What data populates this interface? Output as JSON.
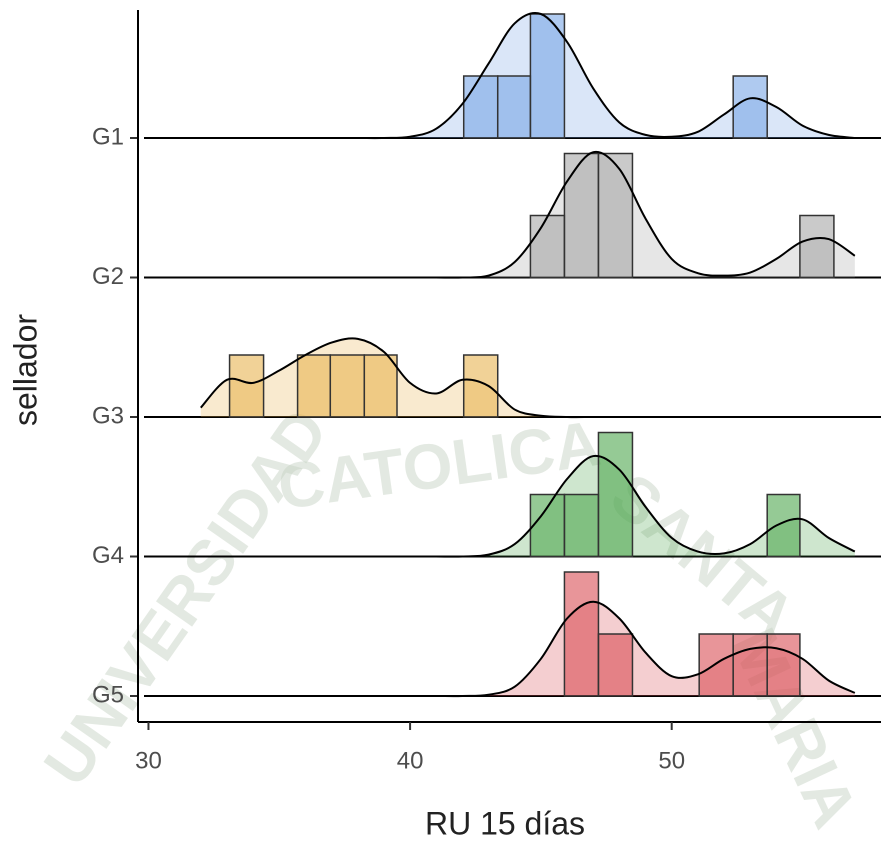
{
  "chart_data": {
    "type": "ridgeline-histogram",
    "x_label": "RU 15 días",
    "y_label": "sellador",
    "xlim": [
      29.6,
      58
    ],
    "xticks": [
      30,
      40,
      50
    ],
    "bins": [
      33.1,
      34.4,
      35.7,
      36.95,
      38.25,
      39.5,
      40.8,
      42.05,
      43.35,
      44.6,
      45.9,
      47.2,
      48.5,
      49.75,
      51.05,
      52.35,
      53.65,
      54.9,
      56.2
    ],
    "density_x": [
      32,
      33,
      34,
      35,
      36,
      37,
      38,
      39,
      40,
      41,
      42,
      43,
      44,
      45,
      46,
      47,
      48,
      49,
      50,
      51,
      52,
      53,
      54,
      55,
      56,
      57
    ],
    "series": [
      {
        "name": "G1",
        "color": "#7aa6e6",
        "counts": [
          0,
          0,
          0,
          0,
          0,
          0,
          0,
          1,
          1,
          2,
          0,
          0,
          0,
          0,
          0,
          1,
          0,
          0
        ],
        "density": [
          0,
          0,
          0,
          0,
          0,
          0,
          0,
          0,
          0.02,
          0.15,
          0.55,
          1.2,
          1.85,
          2.0,
          1.55,
          0.8,
          0.25,
          0.05,
          0.02,
          0.1,
          0.38,
          0.64,
          0.5,
          0.2,
          0.05,
          0
        ]
      },
      {
        "name": "G2",
        "color": "#a6a6a6",
        "counts": [
          0,
          0,
          0,
          0,
          0,
          0,
          0,
          0,
          0,
          1,
          2,
          2,
          0,
          0,
          0,
          0,
          0,
          1
        ],
        "density": [
          0,
          0,
          0,
          0,
          0,
          0,
          0,
          0,
          0,
          0,
          0,
          0.03,
          0.25,
          0.8,
          1.55,
          2.02,
          1.75,
          0.95,
          0.3,
          0.07,
          0.03,
          0.08,
          0.3,
          0.58,
          0.62,
          0.35
        ]
      },
      {
        "name": "G3",
        "color": "#e8b452",
        "counts": [
          1,
          0,
          1,
          1,
          1,
          0,
          0,
          1,
          0,
          0,
          0,
          0,
          0,
          0,
          0,
          0,
          0,
          0
        ],
        "density": [
          0.15,
          0.6,
          0.55,
          0.75,
          1.0,
          1.2,
          1.26,
          1.05,
          0.55,
          0.38,
          0.6,
          0.5,
          0.12,
          0.02,
          0,
          0,
          0,
          0,
          0,
          0,
          0,
          0,
          0,
          0,
          0,
          0
        ]
      },
      {
        "name": "G4",
        "color": "#4ea64e",
        "counts": [
          0,
          0,
          0,
          0,
          0,
          0,
          0,
          0,
          0,
          1,
          1,
          2,
          0,
          0,
          0,
          0,
          1,
          0
        ],
        "density": [
          0,
          0,
          0,
          0,
          0,
          0,
          0,
          0,
          0,
          0,
          0,
          0.03,
          0.2,
          0.65,
          1.25,
          1.62,
          1.4,
          0.8,
          0.3,
          0.08,
          0.05,
          0.2,
          0.5,
          0.6,
          0.3,
          0.08
        ]
      },
      {
        "name": "G5",
        "color": "#d94f55",
        "counts": [
          0,
          0,
          0,
          0,
          0,
          0,
          0,
          0,
          0,
          0,
          2,
          1,
          0,
          0,
          1,
          1,
          1,
          0
        ],
        "density": [
          0,
          0,
          0,
          0,
          0,
          0,
          0,
          0,
          0,
          0,
          0,
          0.02,
          0.15,
          0.6,
          1.25,
          1.52,
          1.25,
          0.7,
          0.32,
          0.35,
          0.6,
          0.76,
          0.77,
          0.6,
          0.25,
          0.05
        ]
      }
    ]
  },
  "watermark": [
    "CATOLICA",
    "UNIVERSIDAD",
    "SANTA",
    "MARIA"
  ]
}
